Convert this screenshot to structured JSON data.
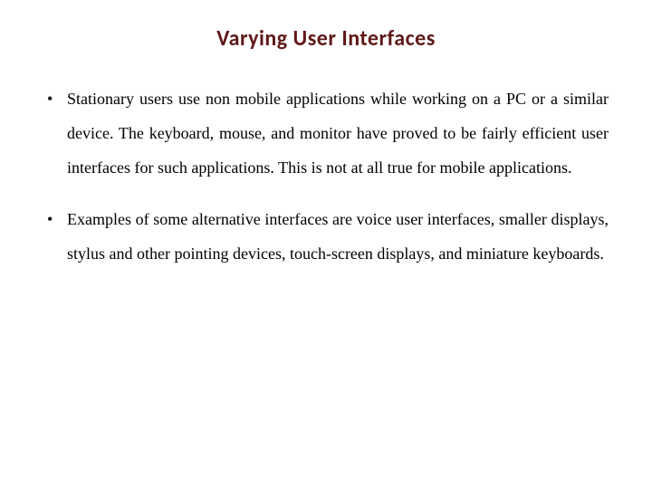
{
  "slide": {
    "title": "Varying User Interfaces",
    "title_color": "#5f1818",
    "title_fontsize": 24,
    "title_font_family": "Calibri, Arial, sans-serif",
    "background_color": "#ffffff",
    "body_font_family": "Georgia, 'Times New Roman', serif",
    "body_fontsize": 18,
    "body_color": "#000000",
    "line_height": 2.1,
    "bullets": [
      {
        "text": "Stationary users use non mobile applications while working on a PC or a similar device. The keyboard, mouse, and monitor have proved to be fairly efficient user interfaces for such applications. This is not at all true for mobile applications."
      },
      {
        "text": "Examples of some alternative interfaces are voice user interfaces, smaller displays, stylus and other pointing devices, touch-screen displays, and miniature keyboards."
      }
    ]
  }
}
